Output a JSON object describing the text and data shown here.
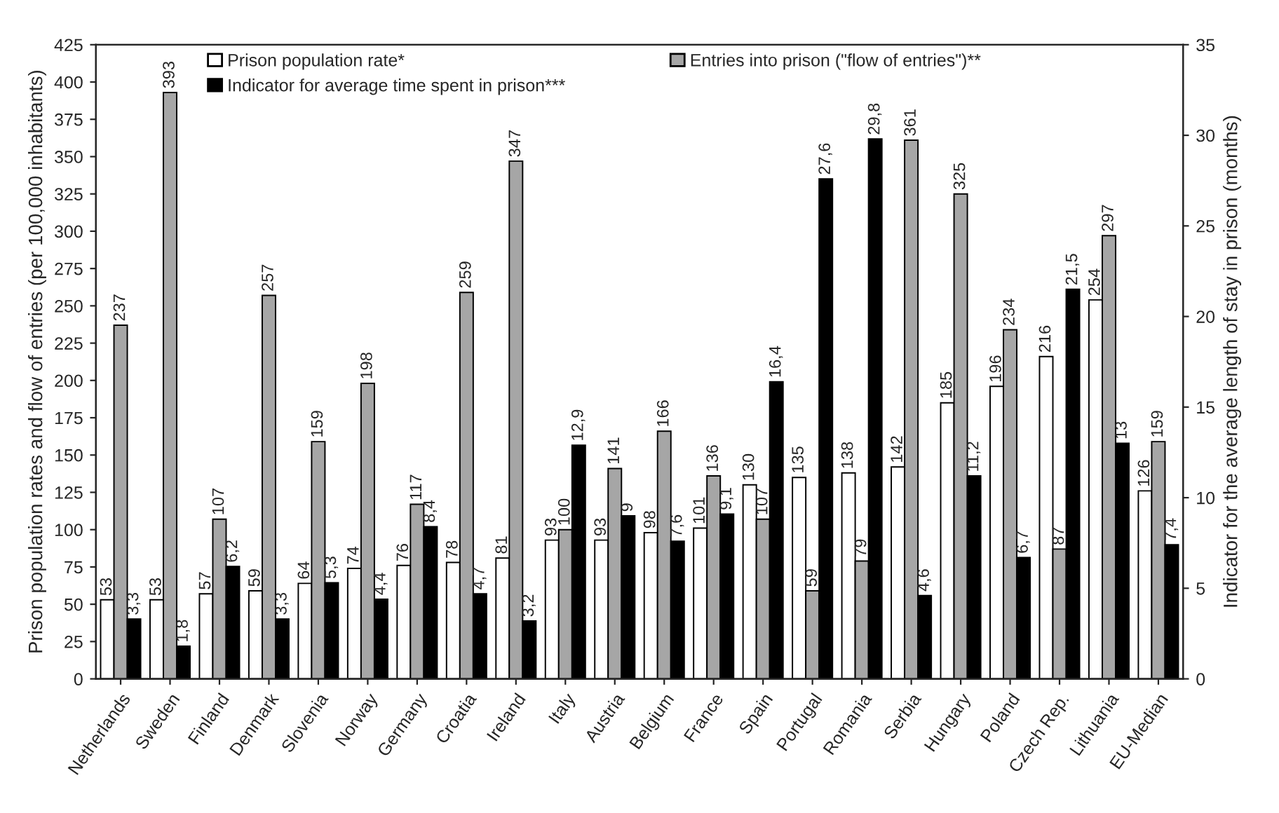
{
  "chart_data": {
    "type": "bar",
    "ylabel": "Prison population rates and flow of entries (per 100,000 inhabitants)",
    "y2label": "Indicator for the average length of stay in prison (months)",
    "categories": [
      "Netherlands",
      "Sweden",
      "Finland",
      "Denmark",
      "Slovenia",
      "Norway",
      "Germany",
      "Croatia",
      "Ireland",
      "Italy",
      "Austria",
      "Belgium",
      "France",
      "Spain",
      "Portugal",
      "Romania",
      "Serbia",
      "Hungary",
      "Poland",
      "Czech Rep.",
      "Lithuania",
      "EU-Median"
    ],
    "series": [
      {
        "name": "Prison population rate*",
        "color": "#ffffff",
        "values": [
          53,
          53,
          57,
          59,
          64,
          74,
          76,
          78,
          81,
          93,
          93,
          98,
          101,
          130,
          135,
          138,
          142,
          185,
          196,
          216,
          254,
          126
        ],
        "value_labels": [
          "53",
          "53",
          "57",
          "59",
          "64",
          "74",
          "76",
          "78",
          "81",
          "93",
          "93",
          "98",
          "101",
          "130",
          "135",
          "138",
          "142",
          "185",
          "196",
          "216",
          "254",
          "126"
        ]
      },
      {
        "name": "Entries into prison (\"flow of entries\")**",
        "color": "#a6a6a6",
        "values": [
          237,
          393,
          107,
          257,
          159,
          198,
          117,
          259,
          347,
          100,
          141,
          166,
          136,
          107,
          59,
          79,
          361,
          325,
          234,
          87,
          297,
          159
        ],
        "value_labels": [
          "237",
          "393",
          "107",
          "257",
          "159",
          "198",
          "117",
          "259",
          "347",
          "100",
          "141",
          "166",
          "136",
          "107",
          "59",
          "79",
          "361",
          "325",
          "234",
          "87",
          "297",
          "159"
        ]
      },
      {
        "name": "Indicator for average time spent in prison***",
        "color": "#000000",
        "axis": "y2",
        "values": [
          3.3,
          1.8,
          6.2,
          3.3,
          5.3,
          4.4,
          8.4,
          4.7,
          3.2,
          12.9,
          9,
          7.6,
          9.1,
          16.4,
          27.6,
          29.8,
          4.6,
          11.2,
          6.7,
          21.5,
          13,
          7.4
        ],
        "value_labels": [
          "3,3",
          "1,8",
          "6,2",
          "3,3",
          "5,3",
          "4,4",
          "8,4",
          "4,7",
          "3,2",
          "12,9",
          "9",
          "7,6",
          "9,1",
          "16,4",
          "27,6",
          "29,8",
          "4,6",
          "11,2",
          "6,7",
          "21,5",
          "13",
          "7,4"
        ]
      }
    ],
    "ylim": [
      0,
      425
    ],
    "yticks": [
      0,
      25,
      50,
      75,
      100,
      125,
      150,
      175,
      200,
      225,
      250,
      275,
      300,
      325,
      350,
      375,
      400,
      425
    ],
    "y2lim": [
      0,
      35
    ],
    "y2ticks": [
      0,
      5,
      10,
      15,
      20,
      25,
      30,
      35
    ],
    "legend": "top left",
    "grid": false
  }
}
